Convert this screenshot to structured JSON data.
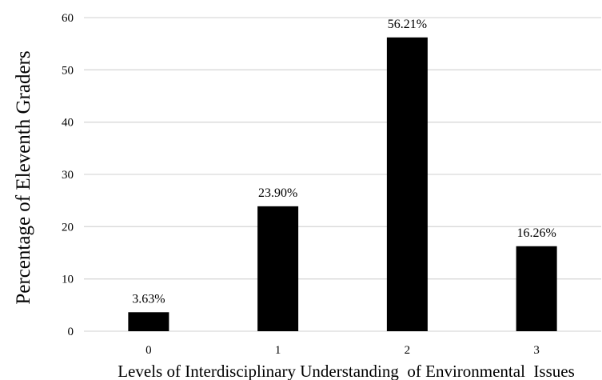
{
  "chart_data": {
    "type": "bar",
    "categories": [
      "0",
      "1",
      "2",
      "3"
    ],
    "values": [
      3.63,
      23.9,
      56.21,
      16.26
    ],
    "data_labels": [
      "3.63%",
      "23.90%",
      "56.21%",
      "16.26%"
    ],
    "title": "",
    "xlabel": "Levels of Interdisciplinary Understanding  of Environmental  Issues",
    "ylabel": "Percentage of Eleventh Graders",
    "ylim": [
      0,
      60
    ],
    "yticks": [
      "0",
      "10",
      "20",
      "30",
      "40",
      "50",
      "60"
    ],
    "grid": true,
    "bar_color": "#000000",
    "grid_color": "#d9d9d9"
  }
}
